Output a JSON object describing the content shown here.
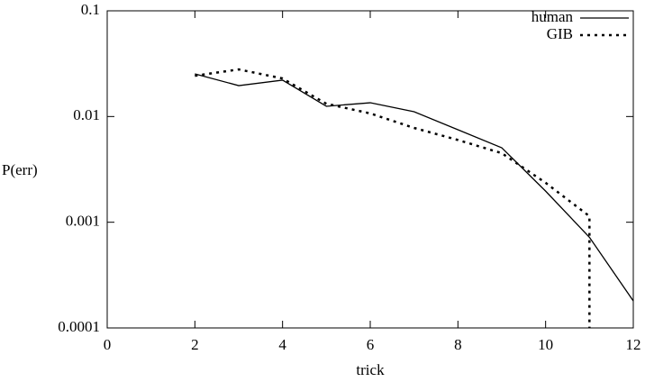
{
  "chart_data": {
    "type": "line",
    "xlabel": "trick",
    "ylabel": "P(err)",
    "log_y": true,
    "xlim": [
      0,
      12
    ],
    "ylim": [
      0.0001,
      0.1
    ],
    "xticks": [
      0,
      2,
      4,
      6,
      8,
      10,
      12
    ],
    "yticks": [
      0.1,
      0.01,
      0.001,
      0.0001
    ],
    "legend": "top-right",
    "series": [
      {
        "name": "human",
        "color": "#000000",
        "style": "solid",
        "x": [
          2,
          3,
          4,
          5,
          6,
          7,
          8,
          9,
          10,
          11,
          12
        ],
        "values": [
          0.0253,
          0.0196,
          0.0221,
          0.0125,
          0.0135,
          0.0111,
          0.0075,
          0.00506,
          0.00197,
          0.00072,
          0.00018
        ]
      },
      {
        "name": "GIB",
        "color": "#000000",
        "style": "dotted",
        "x": [
          2,
          3,
          4,
          5,
          6,
          7,
          8,
          9,
          10,
          11,
          11
        ],
        "values": [
          0.0243,
          0.0279,
          0.0229,
          0.0132,
          0.0107,
          0.0078,
          0.006,
          0.0045,
          0.00236,
          0.00114,
          0.0001
        ]
      }
    ]
  }
}
